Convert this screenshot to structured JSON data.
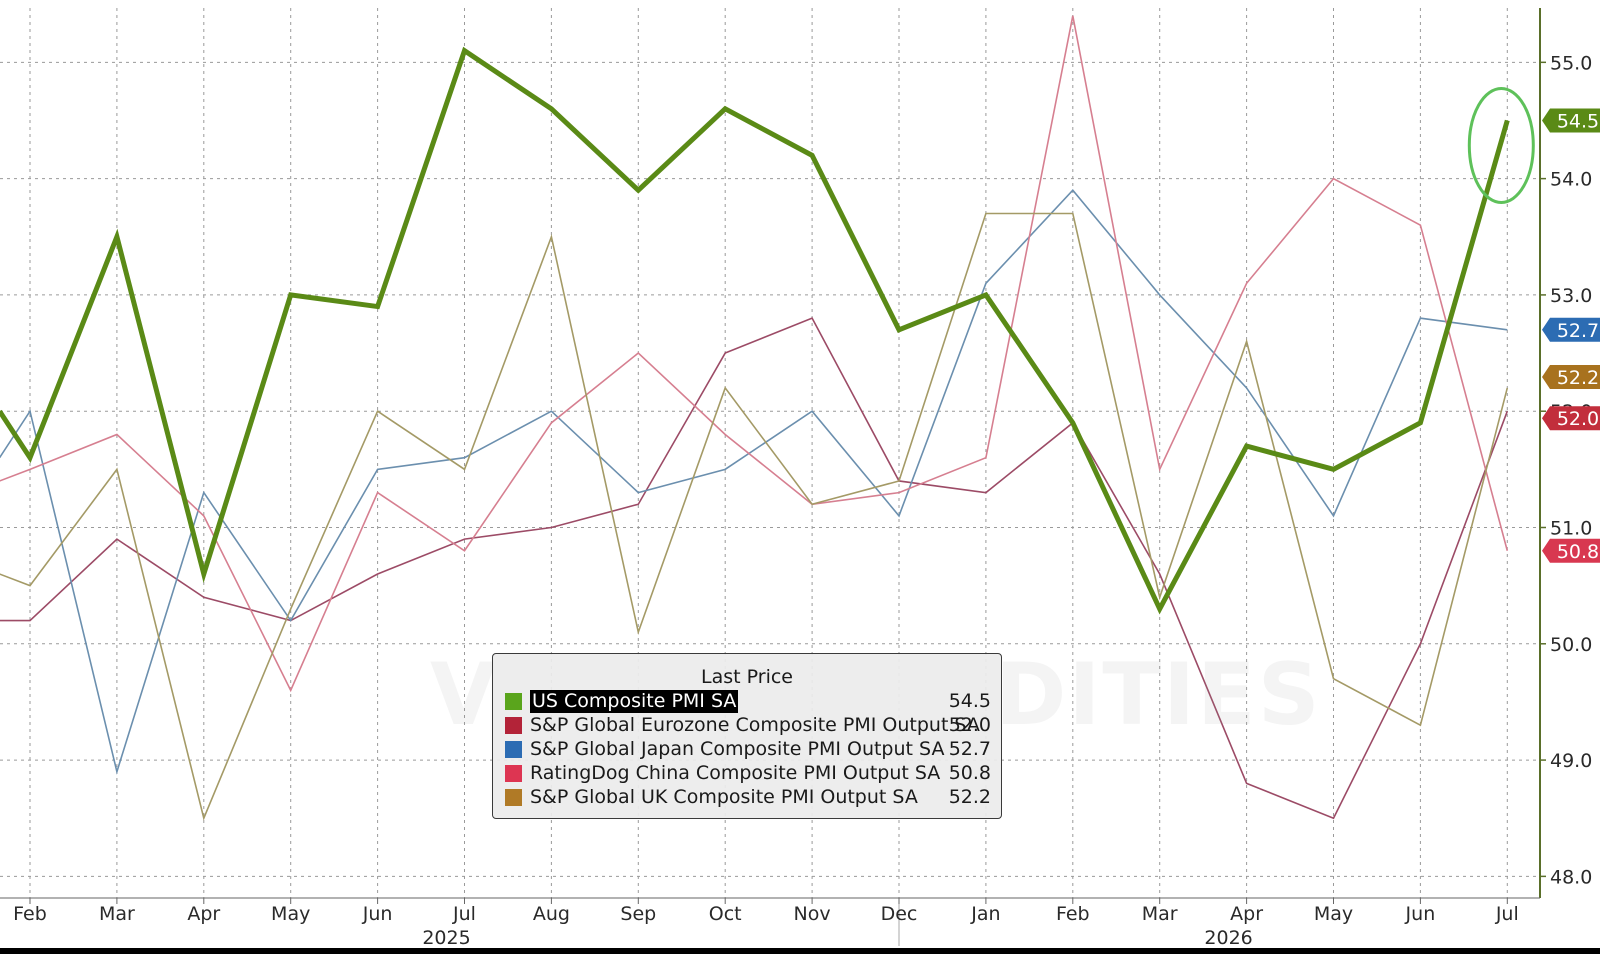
{
  "chart_data": {
    "type": "line",
    "legend_title": "Last Price",
    "legend_placement": "bottom-center",
    "grid": true,
    "x_labels": [
      "Feb",
      "Mar",
      "Apr",
      "May",
      "Jun",
      "Jul",
      "Aug",
      "Sep",
      "Oct",
      "Nov",
      "Dec",
      "Jan",
      "Feb",
      "Mar",
      "Apr",
      "May",
      "Jun",
      "Jul"
    ],
    "year_labels": [
      {
        "label": "2025",
        "index": 5
      },
      {
        "label": "2026",
        "index": 14
      }
    ],
    "y_ticks": [
      "48.0",
      "49.0",
      "50.0",
      "51.0",
      "52.0",
      "53.0",
      "54.0",
      "55.0"
    ],
    "ylim": [
      47.9,
      55.45
    ],
    "highlight_last_point_series": 0,
    "series": [
      {
        "name": "US Composite PMI SA",
        "color": "#5a8a16",
        "last": "54.5",
        "label_color": "#5a8a16",
        "emphasis": true,
        "x": [
          -0.35,
          0,
          1,
          2,
          3,
          4,
          5,
          6,
          7,
          8,
          9,
          10,
          11,
          12,
          13,
          14,
          15,
          16,
          17
        ],
        "values": [
          52.0,
          51.6,
          53.5,
          50.6,
          53.0,
          52.9,
          55.1,
          54.6,
          53.9,
          54.6,
          54.2,
          52.7,
          53.0,
          51.9,
          50.3,
          51.7,
          51.5,
          51.9,
          54.5
        ]
      },
      {
        "name": "S&P Global Eurozone Composite PMI Output SA",
        "color": "#9c4b66",
        "last": "52.0",
        "label_color": "#c22e3c",
        "x": [
          -0.35,
          0,
          1,
          2,
          3,
          4,
          5,
          6,
          7,
          8,
          9,
          10,
          11,
          12,
          13,
          14,
          15,
          16,
          17
        ],
        "values": [
          50.2,
          50.2,
          50.9,
          50.4,
          50.2,
          50.6,
          50.9,
          51.0,
          51.2,
          52.5,
          52.8,
          51.4,
          51.3,
          51.9,
          50.6,
          48.8,
          48.5,
          50.0,
          52.0
        ]
      },
      {
        "name": "S&P Global Japan Composite PMI Output SA",
        "color": "#6b8fae",
        "last": "52.7",
        "label_color": "#2c6cb3",
        "x": [
          -0.35,
          0,
          1,
          2,
          3,
          4,
          5,
          6,
          7,
          8,
          9,
          10,
          11,
          12,
          13,
          14,
          15,
          16,
          17
        ],
        "values": [
          51.6,
          52.0,
          48.9,
          51.3,
          50.2,
          51.5,
          51.6,
          52.0,
          51.3,
          51.5,
          52.0,
          51.1,
          53.1,
          53.9,
          53.0,
          52.2,
          51.1,
          52.8,
          52.7
        ]
      },
      {
        "name": "RatingDog China Composite PMI Output SA",
        "color": "#d67f90",
        "last": "50.8",
        "label_color": "#d83850",
        "x": [
          -0.35,
          0,
          1,
          2,
          3,
          4,
          5,
          6,
          7,
          8,
          9,
          10,
          11,
          12,
          13,
          14,
          15,
          16,
          17
        ],
        "values": [
          51.4,
          51.5,
          51.8,
          51.1,
          49.6,
          51.3,
          50.8,
          51.9,
          52.5,
          51.8,
          51.2,
          51.3,
          51.6,
          55.4,
          51.5,
          53.1,
          54.0,
          53.6,
          50.8
        ]
      },
      {
        "name": "S&P Global UK Composite PMI Output SA",
        "color": "#a49a66",
        "last": "52.2",
        "label_color": "#a8721e",
        "x": [
          -0.35,
          0,
          1,
          2,
          3,
          4,
          5,
          6,
          7,
          8,
          9,
          10,
          11,
          12,
          13,
          14,
          15,
          16,
          17
        ],
        "values": [
          50.6,
          50.5,
          51.5,
          48.5,
          50.3,
          52.0,
          51.5,
          53.5,
          50.1,
          52.2,
          51.2,
          51.4,
          53.7,
          53.7,
          50.4,
          52.6,
          49.7,
          49.3,
          52.2
        ]
      }
    ],
    "legend_swatches": [
      "#5aa51c",
      "#b32338",
      "#2c6cb3",
      "#dd3552",
      "#b07a26"
    ]
  },
  "watermark_text": "VN COMMODITIES"
}
